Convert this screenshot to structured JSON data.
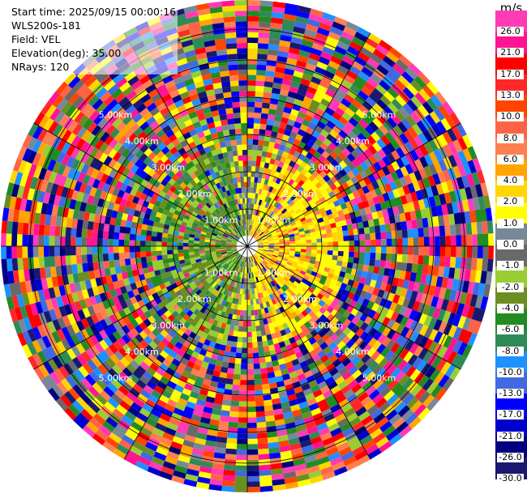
{
  "info": {
    "start_time": "Start time: 2025/09/15 00:00:16",
    "site": "WLS200s-181",
    "field": "Field: VEL",
    "elevation": "Elevation(deg): 35.00",
    "nrays": "NRays: 120"
  },
  "legend": {
    "unit": "m/s",
    "ticks": [
      "26.0",
      "21.0",
      "17.0",
      "13.0",
      "10.0",
      "8.0",
      "6.0",
      "4.0",
      "2.0",
      "1.0",
      "0.0",
      "-1.0",
      "-2.0",
      "-4.0",
      "-6.0",
      "-8.0",
      "-10.0",
      "-13.0",
      "-17.0",
      "-21.0",
      "-26.0",
      "-30.0"
    ],
    "colors": [
      "#ff3bb5",
      "#ff1493",
      "#ff0000",
      "#ff2828",
      "#ff4500",
      "#ff6347",
      "#ff7f50",
      "#ffa500",
      "#ffd700",
      "#ffff00",
      "#778899",
      "#696969",
      "#9acd32",
      "#6b8e23",
      "#228b22",
      "#2e8b57",
      "#1e90ff",
      "#4169e1",
      "#0000ff",
      "#0000cd",
      "#000080",
      "#191970"
    ]
  },
  "range_rings_km": [
    1,
    2,
    3,
    4,
    5
  ],
  "range_labels": [
    "1.00km",
    "2.00km",
    "3.00km",
    "4.00km",
    "5.00km"
  ]
}
